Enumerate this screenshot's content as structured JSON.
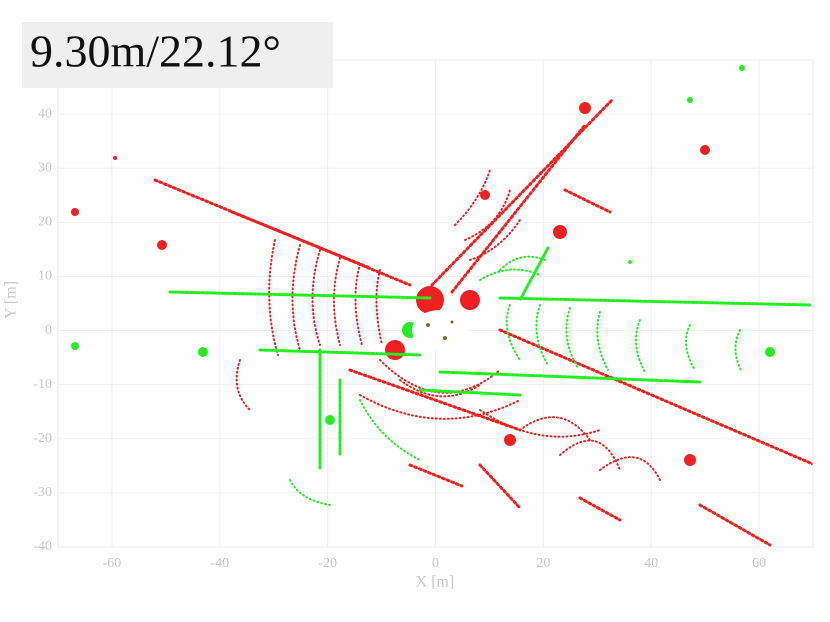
{
  "chart_data": {
    "type": "scatter",
    "title": "9.30m/22.12°",
    "xlabel": "X [m]",
    "ylabel": "Y [m]",
    "xlim": [
      -70,
      70
    ],
    "ylim": [
      -40,
      50
    ],
    "xticks": [
      -60,
      -40,
      -20,
      0,
      20,
      40,
      60
    ],
    "yticks": [
      -40,
      -30,
      -20,
      -10,
      0,
      10,
      20,
      30,
      40
    ],
    "grid": true
  }
}
